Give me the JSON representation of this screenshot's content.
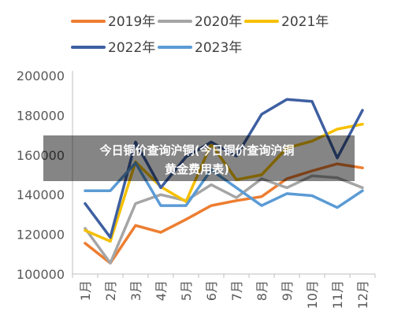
{
  "overlay": {
    "line1": "今日铜价查询沪铜(今日铜价查询沪铜",
    "line2": "黄金费用表)"
  },
  "chart_data": {
    "type": "line",
    "categories": [
      "1月",
      "2月",
      "3月",
      "4月",
      "5月",
      "6月",
      "7月",
      "8月",
      "9月",
      "10月",
      "11月",
      "12月"
    ],
    "ylim": [
      100000,
      200000
    ],
    "yticks": [
      100000,
      120000,
      140000,
      160000,
      180000,
      200000
    ],
    "ytick_labels": [
      "100000",
      "120000",
      "140000",
      "160000",
      "180000",
      "200000"
    ],
    "grid": false,
    "legend_position": "top",
    "series": [
      {
        "name": "2019年",
        "color": "#ED7D31",
        "values": [
          115500,
          105500,
          124500,
          121000,
          127500,
          134500,
          137000,
          139000,
          148000,
          152000,
          155500,
          153500
        ]
      },
      {
        "name": "2020年",
        "color": "#A5A5A5",
        "values": [
          123000,
          105500,
          135500,
          140000,
          137000,
          145000,
          138500,
          148000,
          143500,
          149500,
          148500,
          143500
        ]
      },
      {
        "name": "2021年",
        "color": "#F5C000",
        "values": [
          122000,
          116500,
          156500,
          144000,
          136500,
          165500,
          147500,
          150000,
          163500,
          167000,
          173000,
          175500
        ]
      },
      {
        "name": "2022年",
        "color": "#3E5FA1",
        "values": [
          135500,
          118500,
          166500,
          143500,
          159000,
          166500,
          159500,
          180500,
          188000,
          187000,
          158500,
          182500
        ]
      },
      {
        "name": "2023年",
        "color": "#5B9BD5",
        "values": [
          142000,
          142000,
          156000,
          134500,
          134500,
          152500,
          143500,
          134500,
          140500,
          139500,
          133500,
          142000
        ]
      }
    ]
  }
}
